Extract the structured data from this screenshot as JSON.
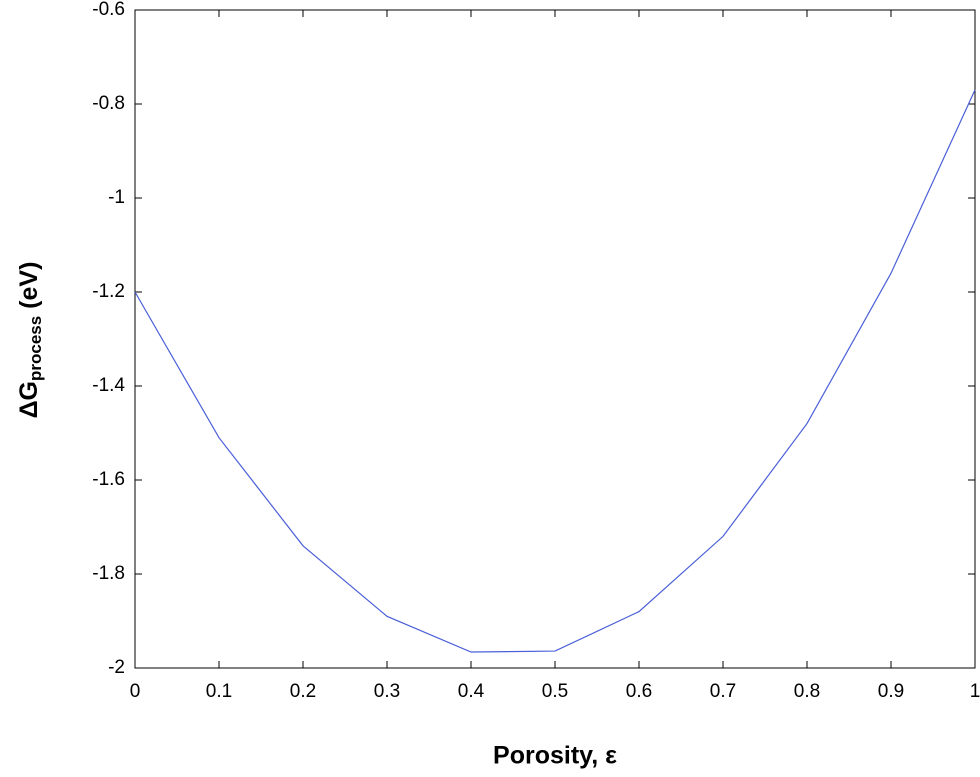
{
  "chart_data": {
    "type": "line",
    "x_label": "Porosity, ε",
    "y_label": {
      "main": "ΔG",
      "sub": "process",
      "unit": " (eV)"
    },
    "x": [
      0,
      0.1,
      0.2,
      0.3,
      0.4,
      0.5,
      0.6,
      0.7,
      0.8,
      0.9,
      1
    ],
    "values": [
      -1.2,
      -1.51,
      -1.74,
      -1.89,
      -1.966,
      -1.964,
      -1.88,
      -1.72,
      -1.48,
      -1.16,
      -0.77
    ],
    "color": "#4a5fd8",
    "xlim": [
      0,
      1
    ],
    "xticks": [
      0,
      0.1,
      0.2,
      0.3,
      0.4,
      0.5,
      0.6,
      0.7,
      0.8,
      0.9,
      1
    ],
    "ylim": [
      -2,
      -0.6
    ],
    "yticks": [
      -2,
      -1.8,
      -1.6,
      -1.4,
      -1.2,
      -1,
      -0.8,
      -0.6
    ],
    "grid": false
  }
}
